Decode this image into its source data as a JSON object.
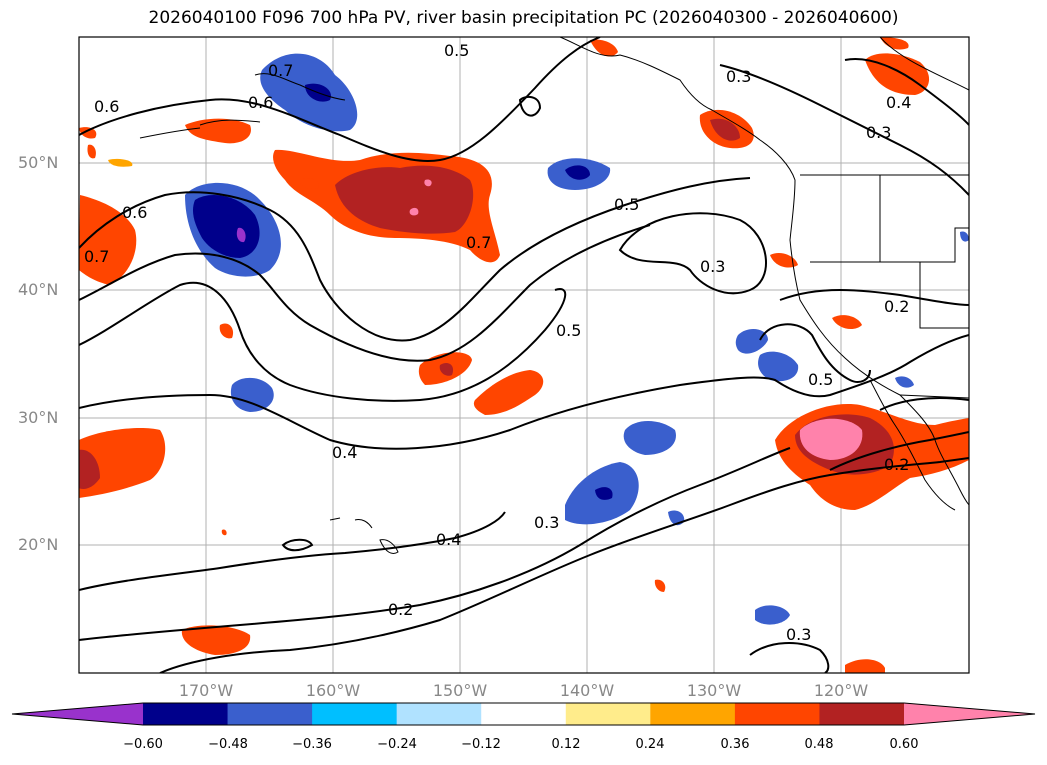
{
  "title": "2026040100 F096 700 hPa PV, river basin precipitation PC (2026040300 - 2026040600)",
  "map": {
    "lat_labels": [
      "50°N",
      "40°N",
      "30°N",
      "20°N"
    ],
    "lon_labels": [
      "170°W",
      "160°W",
      "150°W",
      "140°W",
      "130°W",
      "120°W"
    ],
    "contour_labels": [
      "0.5",
      "0.7",
      "0.6",
      "0.6",
      "0.6",
      "0.7",
      "0.7",
      "0.5",
      "0.3",
      "0.5",
      "0.4",
      "0.3",
      "0.3",
      "0.2",
      "0.5",
      "0.4",
      "0.4",
      "0.3",
      "0.2",
      "0.2",
      "0.3"
    ],
    "fill_colors": {
      "dark_blue": "#00008b",
      "royal_blue": "#3a5fcd",
      "sky": "#00bfff",
      "pale_blue": "#b0e2ff",
      "light_yellow": "#ffec8b",
      "orange": "#ffa500",
      "orange_red": "#ff4500",
      "firebrick": "#b22222",
      "pink": "#ff82ab"
    }
  },
  "colorbar": {
    "colors": [
      "#9932cc",
      "#00008b",
      "#3a5fcd",
      "#00bfff",
      "#b0e2ff",
      "#ffffff",
      "#ffec8b",
      "#ffa500",
      "#ff4500",
      "#b22222",
      "#ff82ab"
    ],
    "tick_labels": [
      "−0.60",
      "−0.48",
      "−0.36",
      "−0.24",
      "−0.12",
      "0.12",
      "0.24",
      "0.36",
      "0.48",
      "0.60"
    ]
  }
}
